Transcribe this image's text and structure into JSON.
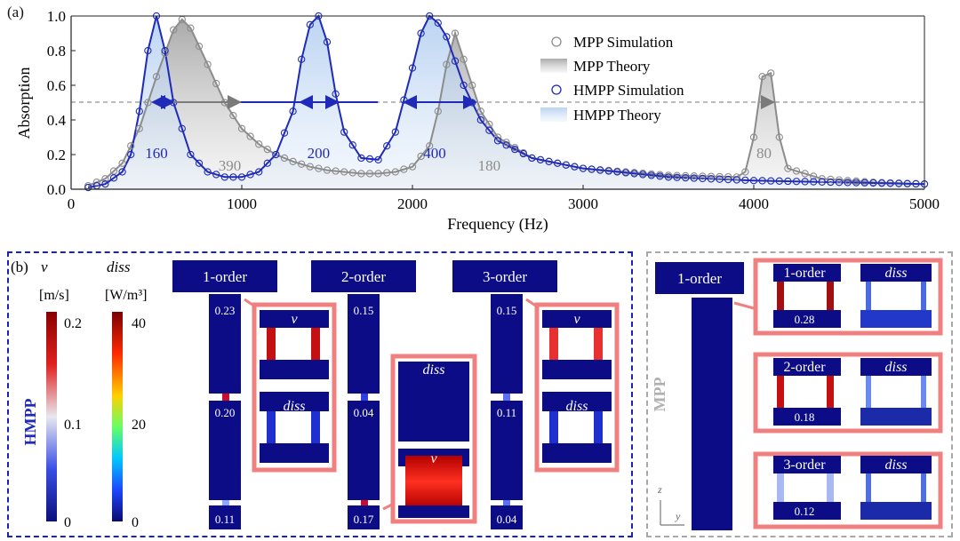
{
  "panel_a": {
    "label": "(a)",
    "chart_data": {
      "type": "line",
      "xlabel": "Frequency (Hz)",
      "ylabel": "Absorption",
      "xlim": [
        0,
        5000
      ],
      "ylim": [
        0,
        1.0
      ],
      "xticks": [
        0,
        1000,
        2000,
        3000,
        4000,
        5000
      ],
      "yticks": [
        0.0,
        0.2,
        0.4,
        0.6,
        0.8,
        1.0
      ],
      "reference_line": 0.5,
      "legend_position": "top-right",
      "legend": [
        "MPP Simulation",
        "MPP Theory",
        "HMPP Simulation",
        "HMPP Theory"
      ],
      "series": [
        {
          "name": "MPP Theory",
          "color": "#8c8c8c",
          "x": [
            100,
            200,
            300,
            400,
            500,
            600,
            650,
            700,
            800,
            900,
            1000,
            1100,
            1200,
            1300,
            1400,
            1500,
            1600,
            1700,
            1800,
            1900,
            2000,
            2100,
            2150,
            2200,
            2250,
            2300,
            2400,
            2500,
            2700,
            3000,
            3500,
            3900,
            3950,
            4000,
            4050,
            4100,
            4150,
            4200,
            4400,
            4700,
            5000
          ],
          "y": [
            0.02,
            0.06,
            0.15,
            0.35,
            0.65,
            0.92,
            0.98,
            0.93,
            0.72,
            0.5,
            0.35,
            0.26,
            0.2,
            0.16,
            0.13,
            0.11,
            0.1,
            0.09,
            0.09,
            0.1,
            0.13,
            0.25,
            0.45,
            0.72,
            0.9,
            0.75,
            0.45,
            0.3,
            0.18,
            0.12,
            0.08,
            0.07,
            0.1,
            0.3,
            0.65,
            0.67,
            0.3,
            0.12,
            0.06,
            0.04,
            0.03
          ]
        },
        {
          "name": "HMPP Theory",
          "color": "#1f2bb8",
          "x": [
            100,
            200,
            300,
            350,
            400,
            450,
            500,
            550,
            600,
            700,
            800,
            900,
            1000,
            1100,
            1200,
            1300,
            1350,
            1400,
            1450,
            1500,
            1550,
            1600,
            1700,
            1800,
            1900,
            2000,
            2050,
            2100,
            2150,
            2200,
            2300,
            2400,
            2500,
            2700,
            3000,
            3500,
            4000,
            4500,
            5000
          ],
          "y": [
            0.01,
            0.03,
            0.1,
            0.2,
            0.45,
            0.8,
            1.0,
            0.8,
            0.5,
            0.2,
            0.1,
            0.07,
            0.07,
            0.1,
            0.2,
            0.45,
            0.75,
            0.95,
            1.0,
            0.85,
            0.55,
            0.33,
            0.18,
            0.17,
            0.33,
            0.7,
            0.9,
            1.0,
            0.96,
            0.88,
            0.6,
            0.4,
            0.28,
            0.18,
            0.12,
            0.07,
            0.05,
            0.04,
            0.03
          ]
        }
      ],
      "bandwidth_labels": [
        {
          "text": "160",
          "color": "#1f2bb8",
          "x": 500
        },
        {
          "text": "390",
          "color": "#8c8c8c",
          "x": 930
        },
        {
          "text": "200",
          "color": "#1f2bb8",
          "x": 1450
        },
        {
          "text": "400",
          "color": "#1f2bb8",
          "x": 2130
        },
        {
          "text": "180",
          "color": "#8c8c8c",
          "x": 2450
        },
        {
          "text": "80",
          "color": "#8c8c8c",
          "x": 4060
        }
      ]
    }
  },
  "panel_b": {
    "label": "(b)",
    "v_symbol": "v",
    "v_unit": "[m/s]",
    "v_ticks": [
      "0.2",
      "0.1",
      "0"
    ],
    "diss_symbol": "diss",
    "diss_unit": "[W/m³]",
    "diss_ticks": [
      "40",
      "20",
      "0"
    ],
    "hmpp_label": "HMPP",
    "mpp_label": "MPP",
    "columns": [
      {
        "title": "1-order",
        "values": [
          "0.23",
          "0.20",
          "0.11"
        ],
        "insets": [
          "v",
          "diss"
        ]
      },
      {
        "title": "2-order",
        "values": [
          "0.15",
          "0.04",
          "0.17"
        ],
        "insets": [
          "diss",
          "v"
        ]
      },
      {
        "title": "3-order",
        "values": [
          "0.15",
          "0.11",
          "0.04"
        ],
        "insets": [
          "v",
          "diss"
        ]
      }
    ],
    "mpp_column_title": "1-order",
    "mpp_insets": [
      {
        "title": "1-order",
        "field": "diss",
        "value": "0.28"
      },
      {
        "title": "2-order",
        "field": "diss",
        "value": "0.18"
      },
      {
        "title": "3-order",
        "field": "diss",
        "value": "0.12"
      }
    ],
    "axis_z": "z",
    "axis_y": "y"
  }
}
